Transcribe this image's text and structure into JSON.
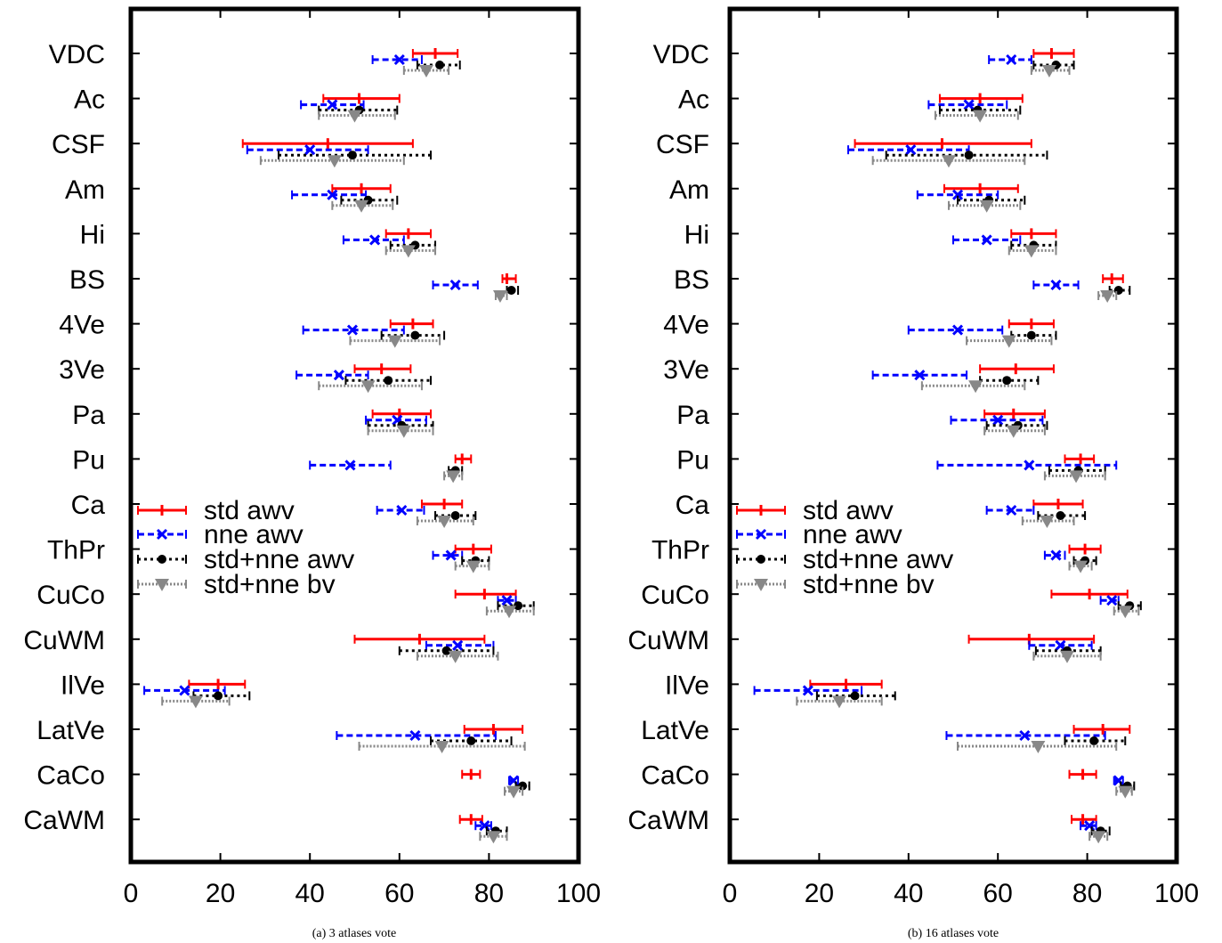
{
  "chart_data": [
    {
      "type": "errorbar",
      "caption": "(a)  3 atlases vote",
      "xlim": [
        0,
        100
      ],
      "xticks": [
        0,
        20,
        40,
        60,
        80,
        100
      ],
      "grid": false,
      "legend_position": "left-middle",
      "categories": [
        "VDC",
        "Ac",
        "CSF",
        "Am",
        "Hi",
        "BS",
        "4Ve",
        "3Ve",
        "Pa",
        "Pu",
        "Ca",
        "ThPr",
        "CuCo",
        "CuWM",
        "IlVe",
        "LatVe",
        "CaCo",
        "CaWM"
      ],
      "series": [
        {
          "name": "std awv",
          "color": "#ff0000",
          "marker": "plus",
          "mean": [
            68,
            51,
            44,
            51.5,
            62,
            84,
            63,
            56,
            60,
            74,
            70,
            76.5,
            79,
            64.5,
            19.5,
            81,
            76,
            76
          ],
          "low": [
            63,
            43,
            25,
            45,
            57,
            83,
            58,
            50,
            54,
            72.5,
            65,
            72.5,
            72.5,
            50,
            13,
            74.5,
            74,
            73.5
          ],
          "high": [
            73,
            60,
            63,
            58,
            67,
            86,
            67.5,
            62.5,
            67,
            76,
            74,
            80.5,
            86,
            79,
            25.5,
            87.5,
            78,
            78.5
          ]
        },
        {
          "name": "nne awv",
          "color": "#0000ff",
          "marker": "x",
          "mean": [
            60,
            45,
            40,
            45,
            54.5,
            72.5,
            49.5,
            46.5,
            59.5,
            49,
            60.5,
            71.5,
            84,
            73,
            12,
            63.5,
            85.5,
            79
          ],
          "low": [
            54,
            38,
            26,
            36,
            47.5,
            67.5,
            38.5,
            37,
            52.5,
            40,
            55,
            67.5,
            82,
            66,
            3,
            46,
            84.5,
            77
          ],
          "high": [
            65,
            52,
            53,
            52.5,
            61,
            77.5,
            61,
            53,
            66,
            58,
            65.5,
            74,
            86,
            81,
            21,
            81.5,
            86.5,
            80.5
          ]
        },
        {
          "name": "std+nne awv",
          "color": "#000000",
          "marker": "circle",
          "mean": [
            69,
            51,
            49.5,
            53,
            63.5,
            85,
            63.5,
            57.5,
            60.5,
            72.5,
            72.5,
            77,
            86.5,
            70.5,
            19.5,
            76,
            87.5,
            81.5
          ],
          "low": [
            64,
            42,
            33,
            47,
            58,
            84,
            56,
            48,
            53,
            71,
            68,
            74,
            82,
            60,
            14,
            67,
            86,
            79.5
          ],
          "high": [
            73.5,
            59.5,
            67,
            59.5,
            68,
            86.5,
            70,
            67,
            67.5,
            74,
            77,
            80,
            90,
            81,
            26.5,
            85,
            89,
            84
          ]
        },
        {
          "name": "std+nne bv",
          "color": "#888888",
          "marker": "triangle",
          "mean": [
            66,
            50,
            45.5,
            51.5,
            62,
            82.5,
            59,
            53,
            61,
            72,
            70,
            76.5,
            84.5,
            72.5,
            14.5,
            69.5,
            85.5,
            81
          ],
          "low": [
            61,
            42,
            29,
            45,
            57,
            81.5,
            49,
            42,
            53,
            70,
            64,
            72.5,
            79.5,
            64,
            7,
            51,
            83.5,
            78
          ],
          "high": [
            71,
            59,
            61,
            58.5,
            68,
            84,
            69,
            65,
            67.5,
            74,
            76.5,
            80,
            90,
            82,
            22,
            88,
            87.5,
            84
          ]
        }
      ]
    },
    {
      "type": "errorbar",
      "caption": "(b)  16 atlases vote",
      "xlim": [
        0,
        100
      ],
      "xticks": [
        0,
        20,
        40,
        60,
        80,
        100
      ],
      "grid": false,
      "legend_position": "left-middle",
      "categories": [
        "VDC",
        "Ac",
        "CSF",
        "Am",
        "Hi",
        "BS",
        "4Ve",
        "3Ve",
        "Pa",
        "Pu",
        "Ca",
        "ThPr",
        "CuCo",
        "CuWM",
        "IlVe",
        "LatVe",
        "CaCo",
        "CaWM"
      ],
      "series": [
        {
          "name": "std awv",
          "color": "#ff0000",
          "marker": "plus",
          "mean": [
            72,
            56,
            47.5,
            56,
            67.5,
            85.5,
            67.5,
            64,
            63.5,
            78.5,
            73.5,
            79.5,
            80.5,
            67,
            26,
            83.5,
            79,
            79
          ],
          "low": [
            68,
            47,
            28,
            48,
            63,
            83.5,
            62.5,
            56,
            57,
            75,
            68,
            76,
            72,
            53.5,
            18,
            77,
            76,
            76.5
          ],
          "high": [
            77,
            65.5,
            67.5,
            64.5,
            73,
            88,
            72.5,
            72.5,
            70.5,
            81.5,
            79,
            83,
            89,
            81.5,
            34,
            89.5,
            82,
            82
          ]
        },
        {
          "name": "nne awv",
          "color": "#0000ff",
          "marker": "x",
          "mean": [
            63,
            53.5,
            40.5,
            51,
            57.5,
            73,
            51,
            42.5,
            60,
            67,
            63,
            73,
            85.5,
            74,
            17.5,
            66,
            87,
            80.5
          ],
          "low": [
            58,
            44.5,
            26.5,
            42,
            50,
            68,
            40,
            32,
            49.5,
            46.5,
            57.5,
            70.5,
            83,
            67,
            5.5,
            48.5,
            86,
            78.5
          ],
          "high": [
            67.5,
            62,
            53.5,
            60,
            65,
            78,
            61,
            53,
            70,
            86.5,
            68,
            75,
            87,
            81,
            29.5,
            84,
            88,
            82
          ]
        },
        {
          "name": "std+nne awv",
          "color": "#000000",
          "marker": "circle",
          "mean": [
            73,
            55.5,
            53.5,
            58,
            68,
            87,
            67.5,
            62,
            64.5,
            78,
            74,
            79.5,
            89.5,
            75.5,
            28,
            81.5,
            89,
            83
          ],
          "low": [
            68,
            47,
            35,
            51,
            63,
            85,
            63,
            56,
            57.5,
            71.5,
            69,
            77,
            87,
            68.5,
            19.5,
            75,
            87.5,
            81
          ],
          "high": [
            77,
            65,
            71,
            66,
            73,
            89.5,
            73,
            69,
            71,
            84,
            79.5,
            82,
            92,
            83,
            37,
            88.5,
            90.5,
            85
          ]
        },
        {
          "name": "std+nne bv",
          "color": "#888888",
          "marker": "triangle",
          "mean": [
            71.5,
            56,
            49,
            57.5,
            67.5,
            84.5,
            62.5,
            55,
            63.5,
            77.5,
            71,
            78.5,
            88.5,
            75.5,
            24.5,
            69,
            88.5,
            82.5
          ],
          "low": [
            67.5,
            46,
            32,
            49,
            62.5,
            82.5,
            53,
            43,
            57,
            70.5,
            65.5,
            76,
            86,
            68,
            15,
            51,
            86.5,
            80.5
          ],
          "high": [
            76,
            64.5,
            66,
            65,
            73,
            86.5,
            72,
            66,
            70.5,
            84,
            77,
            81,
            91.5,
            83,
            34,
            86.5,
            90,
            84.5
          ]
        }
      ]
    }
  ]
}
